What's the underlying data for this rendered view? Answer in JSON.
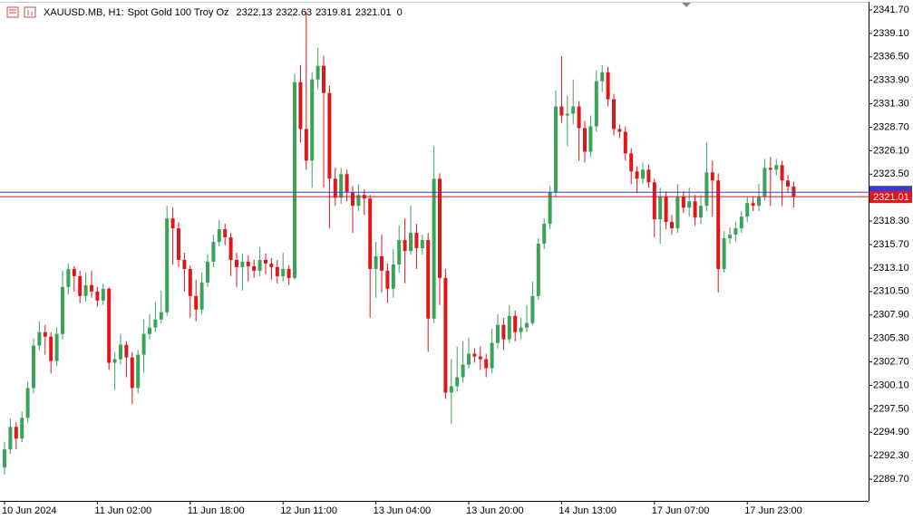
{
  "chart_data": {
    "type": "candlestick",
    "symbol": "XAUUSD.MB, H1:",
    "description": "Spot Gold 100 Troy Oz",
    "volume": 0,
    "up_color": "#3aa35a",
    "down_color": "#e0161b",
    "ask_line": {
      "value": 2321.5,
      "color": "#3a3ad0"
    },
    "bid_color": "#e8141b",
    "ylim": [
      2287.3,
      2342.6
    ],
    "yticks": [
      {
        "value": 2341.7,
        "label": "2341.70"
      },
      {
        "value": 2339.1,
        "label": "2339.10"
      },
      {
        "value": 2336.5,
        "label": "2336.50"
      },
      {
        "value": 2333.9,
        "label": "2333.90"
      },
      {
        "value": 2331.3,
        "label": "2331.30"
      },
      {
        "value": 2328.7,
        "label": "2328.70"
      },
      {
        "value": 2326.1,
        "label": "2326.10"
      },
      {
        "value": 2323.5,
        "label": "2323.50"
      },
      {
        "value": 2318.3,
        "label": "2318.30"
      },
      {
        "value": 2315.7,
        "label": "2315.70"
      },
      {
        "value": 2313.1,
        "label": "2313.10"
      },
      {
        "value": 2310.5,
        "label": "2310.50"
      },
      {
        "value": 2307.9,
        "label": "2307.90"
      },
      {
        "value": 2305.3,
        "label": "2305.30"
      },
      {
        "value": 2302.7,
        "label": "2302.70"
      },
      {
        "value": 2300.1,
        "label": "2300.10"
      },
      {
        "value": 2297.5,
        "label": "2297.50"
      },
      {
        "value": 2294.9,
        "label": "2294.90"
      },
      {
        "value": 2292.3,
        "label": "2292.30"
      },
      {
        "value": 2289.7,
        "label": "2289.70"
      }
    ],
    "categories": [
      "10 Jun 2024",
      null,
      null,
      null,
      null,
      null,
      null,
      null,
      null,
      null,
      null,
      null,
      null,
      null,
      null,
      null,
      "11 Jun 02:00",
      null,
      null,
      null,
      null,
      null,
      null,
      null,
      null,
      null,
      null,
      null,
      null,
      null,
      null,
      null,
      "11 Jun 18:00",
      null,
      null,
      null,
      null,
      null,
      null,
      null,
      null,
      null,
      null,
      null,
      null,
      null,
      null,
      null,
      "12 Jun 11:00",
      null,
      null,
      null,
      null,
      null,
      null,
      null,
      null,
      null,
      null,
      null,
      null,
      null,
      null,
      null,
      "13 Jun 04:00",
      null,
      null,
      null,
      null,
      null,
      null,
      null,
      null,
      null,
      null,
      null,
      null,
      null,
      null,
      null,
      "13 Jun 20:00",
      null,
      null,
      null,
      null,
      null,
      null,
      null,
      null,
      null,
      null,
      null,
      null,
      null,
      null,
      null,
      "14 Jun 13:00",
      null,
      null,
      null,
      null,
      null,
      null,
      null,
      null,
      null,
      null,
      null,
      null,
      null,
      null,
      null,
      "17 Jun 07:00",
      null,
      null,
      null,
      null,
      null,
      null,
      null,
      null,
      null,
      null,
      null,
      null,
      null,
      null,
      null,
      "17 Jun 23:00",
      null,
      null,
      null,
      null,
      null,
      null,
      null,
      null
    ],
    "open": [
      2291.0,
      2293.0,
      2295.5,
      2294.2,
      2296.5,
      2299.8,
      2304.5,
      2306.0,
      2305.5,
      2302.8,
      2305.8,
      2311.0,
      2313.0,
      2312.2,
      2310.0,
      2311.2,
      2310.5,
      2309.5,
      2310.8,
      2302.6,
      2303.0,
      2304.6,
      2303.2,
      2299.8,
      2303.5,
      2305.8,
      2306.5,
      2307.4,
      2308.2,
      2318.6,
      2317.5,
      2314.0,
      2313.0,
      2310.0,
      2308.5,
      2311.5,
      2313.8,
      2316.0,
      2317.4,
      2316.5,
      2314.0,
      2313.2,
      2313.8,
      2313.3,
      2312.8,
      2314.0,
      2313.6,
      2313.2,
      2312.2,
      2313.0,
      2312.0,
      2333.7,
      2328.5,
      2325.0,
      2334.0,
      2335.5,
      2332.5,
      2323.0,
      2320.9,
      2323.5,
      2321.5,
      2320.0,
      2321.2,
      2320.8,
      2313.0,
      2314.4,
      2312.8,
      2310.8,
      2313.5,
      2316.2,
      2315.0,
      2317.0,
      2315.3,
      2316.2,
      2307.5,
      2323.0,
      2312.0,
      2299.3,
      2300.0,
      2301.0,
      2302.4,
      2303.6,
      2303.3,
      2303.0,
      2302.0,
      2304.8,
      2306.8,
      2305.2,
      2307.8,
      2306.0,
      2306.5,
      2307.0,
      2310.0,
      2315.8,
      2318.0,
      2321.5,
      2331.0,
      2330.0,
      2330.2,
      2331.0,
      2328.6,
      2326.0,
      2328.8,
      2333.8,
      2334.8,
      2331.8,
      2328.5,
      2328.2,
      2325.8,
      2323.8,
      2323.0,
      2324.0,
      2322.6,
      2318.5,
      2321.0,
      2318.2,
      2317.5,
      2321.0,
      2319.8,
      2320.5,
      2318.7,
      2320.0,
      2323.7,
      2322.8,
      2313.0,
      2316.4,
      2316.8,
      2317.5,
      2318.8,
      2320.3,
      2320.0,
      2321.0,
      2324.2,
      2324.0,
      2324.5,
      2322.8,
      2322.13
    ],
    "high": [
      2293.8,
      2296.4,
      2296.0,
      2297.2,
      2300.5,
      2305.3,
      2307.2,
      2306.8,
      2306.0,
      2306.5,
      2312.8,
      2313.6,
      2313.3,
      2312.8,
      2312.6,
      2312.8,
      2311.0,
      2311.4,
      2311.0,
      2303.8,
      2305.8,
      2305.0,
      2303.8,
      2304.0,
      2307.4,
      2308.0,
      2309.3,
      2310.6,
      2320.0,
      2319.8,
      2318.2,
      2314.8,
      2313.4,
      2311.8,
      2312.6,
      2314.6,
      2316.8,
      2318.4,
      2318.0,
      2317.0,
      2314.8,
      2314.7,
      2314.5,
      2314.0,
      2315.4,
      2314.7,
      2314.2,
      2314.0,
      2314.8,
      2313.4,
      2334.6,
      2335.6,
      2341.5,
      2334.8,
      2337.5,
      2336.6,
      2333.3,
      2324.2,
      2324.2,
      2324.0,
      2322.2,
      2322.4,
      2321.8,
      2321.2,
      2316.0,
      2316.8,
      2313.6,
      2315.2,
      2317.8,
      2318.6,
      2320.0,
      2318.0,
      2316.8,
      2317.0,
      2326.6,
      2323.6,
      2313.0,
      2303.0,
      2304.4,
      2305.0,
      2305.4,
      2304.2,
      2304.4,
      2303.6,
      2306.4,
      2308.0,
      2307.6,
      2309.0,
      2308.4,
      2307.6,
      2309.0,
      2311.6,
      2316.4,
      2318.6,
      2322.2,
      2332.8,
      2336.6,
      2332.2,
      2334.0,
      2331.6,
      2329.4,
      2330.0,
      2335.0,
      2335.6,
      2335.4,
      2332.4,
      2329.0,
      2328.8,
      2326.4,
      2324.4,
      2324.8,
      2324.6,
      2323.0,
      2322.0,
      2321.6,
      2319.0,
      2322.4,
      2321.6,
      2322.0,
      2321.2,
      2321.2,
      2327.0,
      2325.0,
      2323.6,
      2317.2,
      2317.6,
      2318.2,
      2319.4,
      2321.0,
      2321.0,
      2322.4,
      2325.2,
      2325.4,
      2325.2,
      2325.0,
      2323.4,
      2322.63
    ],
    "low": [
      2290.2,
      2292.5,
      2293.0,
      2293.8,
      2296.0,
      2299.2,
      2304.0,
      2303.5,
      2301.4,
      2302.2,
      2305.2,
      2310.2,
      2310.5,
      2309.2,
      2309.4,
      2309.8,
      2308.8,
      2309.0,
      2301.8,
      2299.6,
      2302.4,
      2301.0,
      2298.0,
      2299.2,
      2301.5,
      2305.2,
      2306.0,
      2307.0,
      2307.8,
      2313.5,
      2313.2,
      2310.5,
      2307.6,
      2307.2,
      2308.0,
      2311.0,
      2313.2,
      2315.5,
      2315.6,
      2312.2,
      2311.0,
      2310.6,
      2311.6,
      2312.0,
      2312.2,
      2312.4,
      2311.8,
      2311.4,
      2311.6,
      2311.2,
      2311.8,
      2327.0,
      2324.0,
      2322.0,
      2333.0,
      2322.0,
      2317.5,
      2320.0,
      2320.2,
      2320.5,
      2317.0,
      2319.4,
      2319.0,
      2307.6,
      2309.8,
      2310.4,
      2309.2,
      2309.8,
      2312.6,
      2311.4,
      2314.6,
      2313.0,
      2314.6,
      2303.8,
      2307.0,
      2309.0,
      2298.6,
      2295.8,
      2299.4,
      2300.4,
      2302.0,
      2302.6,
      2301.8,
      2301.0,
      2301.4,
      2304.2,
      2304.0,
      2304.8,
      2305.0,
      2305.2,
      2306.0,
      2306.8,
      2309.6,
      2315.2,
      2317.4,
      2321.0,
      2329.2,
      2326.6,
      2329.0,
      2325.0,
      2324.8,
      2325.4,
      2328.2,
      2332.6,
      2331.0,
      2327.8,
      2327.5,
      2325.0,
      2322.4,
      2321.4,
      2322.4,
      2322.0,
      2316.5,
      2315.8,
      2317.4,
      2316.8,
      2317.0,
      2319.2,
      2318.8,
      2317.8,
      2318.0,
      2319.4,
      2318.8,
      2310.4,
      2312.6,
      2315.8,
      2316.0,
      2317.0,
      2318.2,
      2319.4,
      2319.4,
      2320.6,
      2320.0,
      2323.4,
      2320.0,
      2321.4,
      2319.81
    ],
    "close": [
      2293.0,
      2295.5,
      2294.2,
      2296.5,
      2299.8,
      2304.5,
      2306.0,
      2305.5,
      2302.8,
      2305.8,
      2311.0,
      2313.0,
      2312.2,
      2310.0,
      2311.2,
      2310.5,
      2309.5,
      2310.8,
      2302.6,
      2303.0,
      2304.6,
      2303.2,
      2299.8,
      2303.5,
      2305.8,
      2306.5,
      2307.4,
      2308.2,
      2318.6,
      2317.5,
      2314.0,
      2313.0,
      2310.0,
      2308.5,
      2311.5,
      2313.8,
      2316.0,
      2317.4,
      2316.5,
      2314.0,
      2313.2,
      2313.8,
      2313.3,
      2312.8,
      2314.0,
      2313.6,
      2313.2,
      2312.2,
      2313.0,
      2312.0,
      2333.7,
      2328.5,
      2325.0,
      2334.0,
      2335.5,
      2332.5,
      2323.0,
      2320.9,
      2323.5,
      2321.5,
      2320.0,
      2321.2,
      2320.8,
      2313.0,
      2314.4,
      2312.8,
      2310.8,
      2313.5,
      2316.2,
      2315.0,
      2317.0,
      2315.3,
      2316.2,
      2307.5,
      2323.0,
      2312.0,
      2299.3,
      2300.0,
      2301.0,
      2302.4,
      2303.6,
      2303.3,
      2303.0,
      2302.0,
      2304.8,
      2306.8,
      2305.2,
      2307.8,
      2306.0,
      2306.5,
      2307.0,
      2310.0,
      2315.8,
      2318.0,
      2321.5,
      2331.0,
      2330.0,
      2330.2,
      2331.0,
      2328.6,
      2326.0,
      2328.8,
      2333.8,
      2334.8,
      2331.8,
      2328.5,
      2328.2,
      2325.8,
      2323.8,
      2323.0,
      2324.0,
      2322.6,
      2318.5,
      2321.0,
      2318.2,
      2317.5,
      2321.0,
      2319.8,
      2320.5,
      2318.7,
      2320.0,
      2323.7,
      2322.8,
      2313.0,
      2316.4,
      2316.8,
      2317.5,
      2318.8,
      2320.3,
      2320.0,
      2321.0,
      2324.2,
      2324.0,
      2324.5,
      2322.8,
      2322.13,
      2321.01
    ]
  }
}
